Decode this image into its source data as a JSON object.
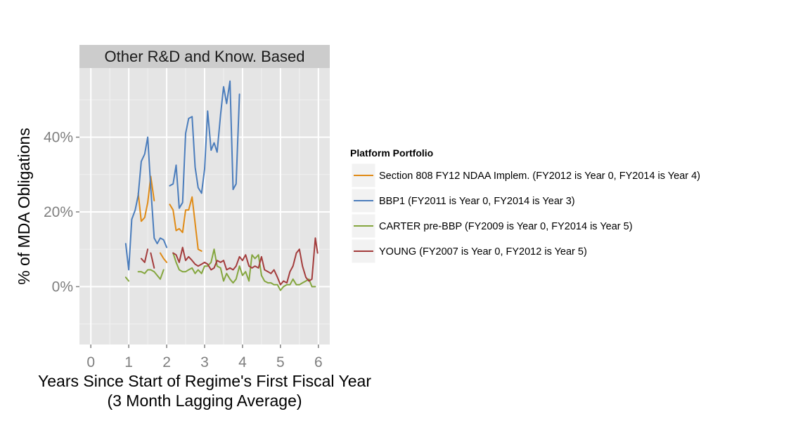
{
  "chart_data": {
    "type": "line",
    "facet_title": "Other R&D and Know. Based",
    "xlabel": [
      "Years Since Start of Regime's First Fiscal Year",
      "(3 Month Lagging Average)"
    ],
    "ylabel": "% of MDA Obligations",
    "xlim": [
      -0.3,
      6.3
    ],
    "ylim": [
      -0.155,
      0.585
    ],
    "x_ticks": [
      0,
      1,
      2,
      3,
      4,
      5,
      6
    ],
    "x_tick_labels": [
      "0",
      "1",
      "2",
      "3",
      "4",
      "5",
      "6"
    ],
    "y_ticks": [
      0,
      0.2,
      0.4
    ],
    "y_tick_labels": [
      "0%",
      "20%",
      "40%"
    ],
    "grid": true,
    "legend": {
      "title": "Platform Portfolio",
      "position": "right"
    },
    "series": [
      {
        "name": "Section 808 FY12 NDAA Implem. (FY2012 is Year 0, FY2014 is Year 4)",
        "color": "#e08b16",
        "segments": [
          [
            [
              1.25,
              0.25
            ],
            [
              1.33,
              0.175
            ],
            [
              1.42,
              0.185
            ],
            [
              1.5,
              0.225
            ],
            [
              1.58,
              0.295
            ],
            [
              1.67,
              0.23
            ]
          ],
          [
            [
              1.83,
              0.09
            ],
            [
              1.92,
              0.075
            ],
            [
              2.0,
              0.065
            ]
          ],
          [
            [
              2.08,
              0.22
            ],
            [
              2.17,
              0.205
            ],
            [
              2.25,
              0.15
            ],
            [
              2.33,
              0.155
            ],
            [
              2.42,
              0.145
            ],
            [
              2.5,
              0.205
            ],
            [
              2.58,
              0.205
            ],
            [
              2.67,
              0.24
            ],
            [
              2.75,
              0.17
            ],
            [
              2.83,
              0.1
            ],
            [
              2.92,
              0.095
            ]
          ]
        ]
      },
      {
        "name": "BBP1 (FY2011 is Year 0, FY2014 is Year 3)",
        "color": "#4b7dbc",
        "segments": [
          [
            [
              0.92,
              0.115
            ],
            [
              1.0,
              0.045
            ],
            [
              1.08,
              0.18
            ],
            [
              1.17,
              0.205
            ],
            [
              1.25,
              0.245
            ],
            [
              1.33,
              0.335
            ],
            [
              1.42,
              0.355
            ],
            [
              1.5,
              0.4
            ],
            [
              1.58,
              0.265
            ],
            [
              1.67,
              0.13
            ],
            [
              1.75,
              0.115
            ],
            [
              1.83,
              0.13
            ],
            [
              1.92,
              0.125
            ],
            [
              2.0,
              0.105
            ]
          ],
          [
            [
              2.08,
              0.27
            ],
            [
              2.17,
              0.275
            ],
            [
              2.25,
              0.325
            ],
            [
              2.33,
              0.21
            ],
            [
              2.42,
              0.225
            ],
            [
              2.5,
              0.41
            ],
            [
              2.58,
              0.45
            ],
            [
              2.67,
              0.455
            ],
            [
              2.75,
              0.32
            ],
            [
              2.83,
              0.265
            ],
            [
              2.92,
              0.25
            ],
            [
              3.0,
              0.315
            ],
            [
              3.08,
              0.47
            ],
            [
              3.17,
              0.365
            ],
            [
              3.25,
              0.385
            ],
            [
              3.33,
              0.36
            ],
            [
              3.42,
              0.46
            ],
            [
              3.5,
              0.535
            ],
            [
              3.58,
              0.49
            ],
            [
              3.67,
              0.55
            ],
            [
              3.75,
              0.26
            ],
            [
              3.83,
              0.275
            ],
            [
              3.92,
              0.515
            ]
          ]
        ]
      },
      {
        "name": "CARTER pre-BBP (FY2009 is Year 0, FY2014 is Year 5)",
        "color": "#84a63e",
        "segments": [
          [
            [
              0.92,
              0.025
            ],
            [
              1.0,
              0.015
            ]
          ],
          [
            [
              1.25,
              0.04
            ],
            [
              1.33,
              0.04
            ],
            [
              1.42,
              0.035
            ],
            [
              1.5,
              0.045
            ],
            [
              1.58,
              0.045
            ],
            [
              1.67,
              0.04
            ],
            [
              1.75,
              0.03
            ],
            [
              1.83,
              0.02
            ],
            [
              1.92,
              0.045
            ]
          ],
          [
            [
              2.17,
              0.09
            ],
            [
              2.25,
              0.065
            ],
            [
              2.33,
              0.045
            ],
            [
              2.42,
              0.04
            ],
            [
              2.5,
              0.04
            ],
            [
              2.58,
              0.045
            ],
            [
              2.67,
              0.05
            ],
            [
              2.75,
              0.035
            ],
            [
              2.83,
              0.045
            ],
            [
              2.92,
              0.035
            ],
            [
              3.0,
              0.055
            ],
            [
              3.08,
              0.055
            ],
            [
              3.17,
              0.065
            ],
            [
              3.25,
              0.1
            ],
            [
              3.33,
              0.055
            ],
            [
              3.42,
              0.05
            ],
            [
              3.5,
              0.015
            ],
            [
              3.58,
              0.035
            ],
            [
              3.67,
              0.02
            ],
            [
              3.75,
              0.01
            ],
            [
              3.83,
              0.02
            ],
            [
              3.92,
              0.055
            ],
            [
              4.0,
              0.03
            ],
            [
              4.08,
              0.04
            ],
            [
              4.17,
              0.015
            ],
            [
              4.25,
              0.085
            ],
            [
              4.33,
              0.075
            ],
            [
              4.42,
              0.085
            ],
            [
              4.5,
              0.03
            ],
            [
              4.58,
              0.015
            ],
            [
              4.67,
              0.01
            ],
            [
              4.75,
              0.01
            ],
            [
              4.83,
              0.005
            ],
            [
              4.92,
              0.005
            ],
            [
              5.0,
              -0.01
            ],
            [
              5.08,
              0.0
            ],
            [
              5.17,
              0.005
            ],
            [
              5.25,
              0.005
            ],
            [
              5.33,
              0.02
            ],
            [
              5.42,
              0.005
            ],
            [
              5.5,
              0.005
            ],
            [
              5.58,
              0.01
            ],
            [
              5.67,
              0.015
            ],
            [
              5.75,
              0.02
            ],
            [
              5.83,
              0.0
            ],
            [
              5.92,
              0.0
            ]
          ]
        ]
      },
      {
        "name": "YOUNG (FY2007 is Year 0, FY2012 is Year 5)",
        "color": "#a33c3c",
        "segments": [
          [
            [
              1.33,
              0.075
            ],
            [
              1.42,
              0.065
            ],
            [
              1.5,
              0.1
            ]
          ],
          [
            [
              1.58,
              0.09
            ],
            [
              1.67,
              0.05
            ]
          ],
          [
            [
              2.17,
              0.09
            ],
            [
              2.25,
              0.085
            ],
            [
              2.33,
              0.065
            ],
            [
              2.42,
              0.105
            ],
            [
              2.5,
              0.07
            ],
            [
              2.58,
              0.08
            ],
            [
              2.67,
              0.07
            ],
            [
              2.75,
              0.06
            ],
            [
              2.83,
              0.055
            ],
            [
              2.92,
              0.06
            ],
            [
              3.0,
              0.065
            ],
            [
              3.08,
              0.06
            ],
            [
              3.17,
              0.045
            ],
            [
              3.25,
              0.05
            ],
            [
              3.33,
              0.07
            ],
            [
              3.42,
              0.065
            ],
            [
              3.5,
              0.07
            ],
            [
              3.58,
              0.045
            ],
            [
              3.67,
              0.05
            ],
            [
              3.75,
              0.045
            ],
            [
              3.83,
              0.055
            ],
            [
              3.92,
              0.08
            ],
            [
              4.0,
              0.07
            ],
            [
              4.08,
              0.085
            ],
            [
              4.17,
              0.055
            ],
            [
              4.25,
              0.05
            ],
            [
              4.33,
              0.055
            ],
            [
              4.42,
              0.05
            ],
            [
              4.5,
              0.08
            ],
            [
              4.58,
              0.045
            ],
            [
              4.67,
              0.04
            ],
            [
              4.75,
              0.035
            ],
            [
              4.83,
              0.045
            ],
            [
              4.92,
              0.025
            ],
            [
              5.0,
              0.005
            ],
            [
              5.08,
              0.015
            ],
            [
              5.17,
              0.01
            ],
            [
              5.25,
              0.04
            ],
            [
              5.33,
              0.055
            ],
            [
              5.42,
              0.09
            ],
            [
              5.5,
              0.1
            ],
            [
              5.58,
              0.055
            ],
            [
              5.67,
              0.025
            ],
            [
              5.75,
              0.015
            ],
            [
              5.83,
              0.02
            ],
            [
              5.92,
              0.13
            ],
            [
              5.98,
              0.09
            ]
          ]
        ]
      }
    ]
  }
}
